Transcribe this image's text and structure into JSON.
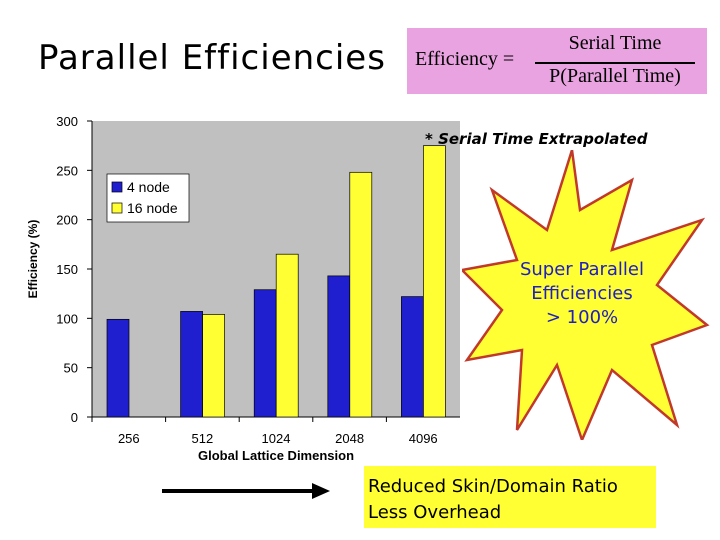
{
  "slide": {
    "title": "Parallel Efficiencies",
    "formula": {
      "lhs": "Efficiency =",
      "numerator": "Serial Time",
      "denominator": "P(Parallel Time)"
    },
    "footnote": "* Serial Time Extrapolated",
    "callout": {
      "line1": "Super Parallel",
      "line2": "Efficiencies",
      "line3": "> 100%"
    },
    "bottom_box": {
      "line1": "Reduced Skin/Domain Ratio",
      "line2": "Less Overhead"
    }
  },
  "colors": {
    "series1": "#1f1fd0",
    "series2": "#ffff33",
    "plot_bg": "#c0c0c0",
    "formula_bg": "#e8a3e0",
    "burst_fill": "#ffff33",
    "burst_stroke": "#c0392b",
    "burst_text": "#2020c0"
  },
  "chart_data": {
    "type": "bar",
    "categories": [
      "256",
      "512",
      "1024",
      "2048",
      "4096"
    ],
    "series": [
      {
        "name": "4 node",
        "values": [
          99,
          107,
          129,
          143,
          122
        ]
      },
      {
        "name": "16 node",
        "values": [
          null,
          104,
          165,
          248,
          275
        ]
      }
    ],
    "xlabel": "Global Lattice Dimension",
    "ylabel": "Efficiency (%)",
    "ylim": [
      0,
      300
    ],
    "yticks": [
      "0",
      "50",
      "100",
      "150",
      "200",
      "250",
      "300"
    ],
    "legend": "top-left",
    "grid": false
  }
}
